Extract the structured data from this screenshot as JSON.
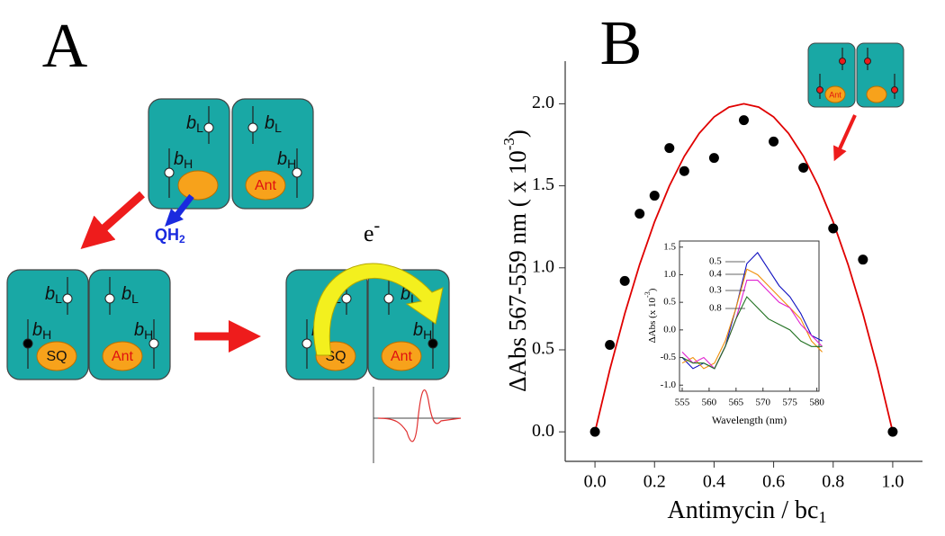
{
  "diagram": {
    "panel_label": "A",
    "b": "b",
    "L": "L",
    "H": "H",
    "sq": "SQ",
    "ant": "Ant",
    "qh2": [
      "QH",
      "2"
    ],
    "electron": [
      "e",
      "-"
    ]
  },
  "chart_data": [
    {
      "type": "scatter",
      "panel_label": "B",
      "ylabel": [
        "ΔAbs 567-559 nm ( x 10",
        "-3",
        ")"
      ],
      "xlabel": [
        "Antimycin / bc",
        "1"
      ],
      "xlim": [
        -0.1,
        1.1
      ],
      "ylim": [
        -0.18,
        2.26
      ],
      "xticks": [
        {
          "value": 0,
          "label": "0.0"
        },
        {
          "value": 0.2,
          "label": "0.2"
        },
        {
          "value": 0.4,
          "label": "0.4"
        },
        {
          "value": 0.6,
          "label": "0.6"
        },
        {
          "value": 0.8,
          "label": "0.8"
        },
        {
          "value": 1,
          "label": "1.0"
        }
      ],
      "yticks": [
        {
          "value": 0,
          "label": "0.0"
        },
        {
          "value": 0.5,
          "label": "0.5"
        },
        {
          "value": 1,
          "label": "1.0"
        },
        {
          "value": 1.5,
          "label": "1.5"
        },
        {
          "value": 2,
          "label": "2.0"
        }
      ],
      "series": [
        {
          "type": "scatter",
          "color": "#000000",
          "x": [
            0,
            0.05,
            0.1,
            0.15,
            0.2,
            0.25,
            0.3,
            0.4,
            0.5,
            0.6,
            0.7,
            0.8,
            0.9,
            1.0
          ],
          "values": [
            0,
            0.53,
            0.92,
            1.33,
            1.44,
            1.73,
            1.59,
            1.67,
            1.9,
            1.77,
            1.61,
            1.24,
            1.05,
            0
          ]
        },
        {
          "type": "line",
          "color": "#e00000",
          "x": [
            0,
            0.05,
            0.1,
            0.15,
            0.2,
            0.25,
            0.3,
            0.35,
            0.4,
            0.45,
            0.5,
            0.55,
            0.6,
            0.65,
            0.7,
            0.75,
            0.8,
            0.85,
            0.9,
            0.95,
            1.0
          ],
          "values": [
            0,
            0.38,
            0.72,
            1.02,
            1.28,
            1.5,
            1.68,
            1.82,
            1.92,
            1.98,
            2.0,
            1.98,
            1.92,
            1.82,
            1.68,
            1.5,
            1.28,
            1.02,
            0.72,
            0.38,
            0
          ]
        }
      ]
    },
    {
      "type": "line",
      "xlabel": "Wavelength (nm)",
      "ylabel": [
        "ΔAbs (x 10",
        "-3",
        ")"
      ],
      "xlim": [
        554.5,
        580.4
      ],
      "ylim": [
        -1.11,
        1.61
      ],
      "xticks": [
        555,
        560,
        565,
        570,
        575,
        580
      ],
      "yticks": [
        1.5,
        {
          "value": 1,
          "label": "1.0"
        },
        0.5,
        {
          "value": 0,
          "label": "0.0"
        },
        -0.5,
        {
          "value": -1,
          "label": "-1.0"
        }
      ],
      "x": [
        555,
        557,
        559,
        561,
        563,
        565,
        567,
        569,
        571,
        573,
        575,
        577,
        579,
        581
      ],
      "series": [
        {
          "name": "0.5",
          "color": "#1010c0",
          "values": [
            -0.5,
            -0.7,
            -0.6,
            -0.7,
            -0.3,
            0.4,
            1.2,
            1.4,
            1.1,
            0.8,
            0.6,
            0.3,
            -0.1,
            -0.2
          ]
        },
        {
          "name": "0.4",
          "color": "#f0900a",
          "values": [
            -0.6,
            -0.5,
            -0.7,
            -0.6,
            -0.2,
            0.4,
            1.1,
            1.0,
            0.8,
            0.6,
            0.4,
            0.2,
            -0.2,
            -0.4
          ]
        },
        {
          "name": "0.3",
          "color": "#e020d0",
          "values": [
            -0.4,
            -0.6,
            -0.5,
            -0.7,
            -0.3,
            0.2,
            0.9,
            0.9,
            0.7,
            0.5,
            0.4,
            0.1,
            -0.1,
            -0.3
          ]
        },
        {
          "name": "0.8",
          "color": "#207020",
          "values": [
            -0.5,
            -0.6,
            -0.6,
            -0.7,
            -0.3,
            0.2,
            0.6,
            0.4,
            0.2,
            0.1,
            0.0,
            -0.2,
            -0.3,
            -0.3
          ]
        }
      ]
    }
  ]
}
